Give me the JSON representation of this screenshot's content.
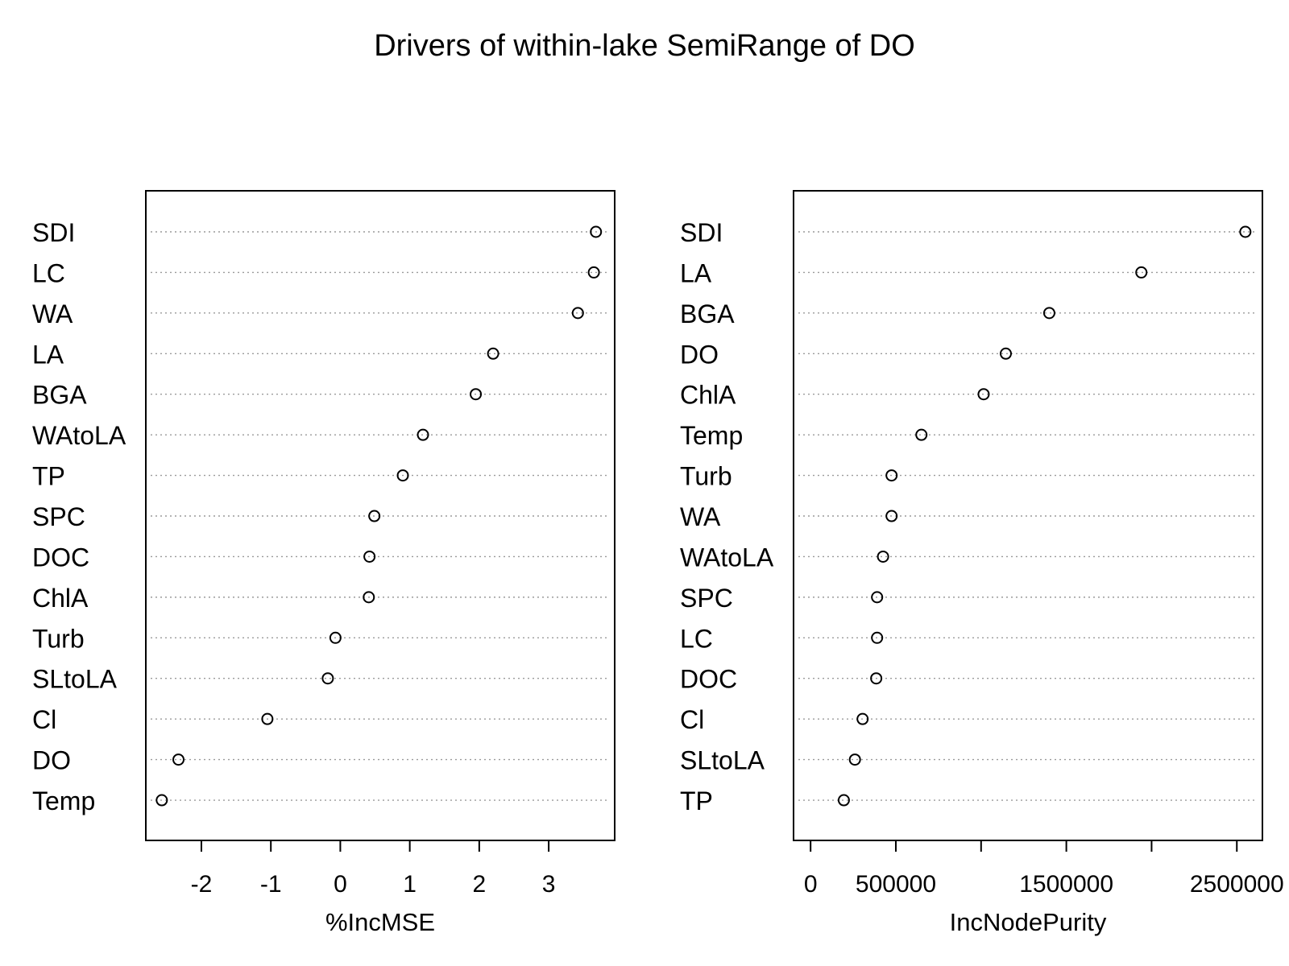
{
  "title": "Drivers of within-lake SemiRange of DO",
  "chart_data": [
    {
      "type": "scatter",
      "subtype": "dotchart",
      "xlabel": "%IncMSE",
      "ylabel": "",
      "xlim": [
        -2.8,
        3.95
      ],
      "xticks": [
        -2,
        -1,
        0,
        1,
        2,
        3
      ],
      "xtick_labels": [
        "-2",
        "-1",
        "0",
        "1",
        "2",
        "3"
      ],
      "grid": "dotted horizontal lines",
      "categories": [
        "SDI",
        "LC",
        "WA",
        "LA",
        "BGA",
        "WAtoLA",
        "TP",
        "SPC",
        "DOC",
        "ChlA",
        "Turb",
        "SLtoLA",
        "Cl",
        "DO",
        "Temp"
      ],
      "values": [
        3.68,
        3.65,
        3.42,
        2.2,
        1.95,
        1.19,
        0.9,
        0.49,
        0.42,
        0.41,
        -0.07,
        -0.18,
        -1.05,
        -2.33,
        -2.57
      ]
    },
    {
      "type": "scatter",
      "subtype": "dotchart",
      "xlabel": "IncNodePurity",
      "ylabel": "",
      "xlim": [
        -100000,
        2650000
      ],
      "xticks": [
        0,
        500000,
        1000000,
        1500000,
        2000000,
        2500000
      ],
      "xtick_labels": [
        "0",
        "500000",
        "",
        "1500000",
        "",
        "2500000"
      ],
      "grid": "dotted horizontal lines",
      "categories": [
        "SDI",
        "LA",
        "BGA",
        "DO",
        "ChlA",
        "Temp",
        "Turb",
        "WA",
        "WAtoLA",
        "SPC",
        "LC",
        "DOC",
        "Cl",
        "SLtoLA",
        "TP"
      ],
      "values": [
        2550000,
        1940000,
        1400000,
        1145000,
        1015000,
        650000,
        475000,
        475000,
        425000,
        390000,
        390000,
        385000,
        305000,
        260000,
        195000
      ]
    }
  ]
}
